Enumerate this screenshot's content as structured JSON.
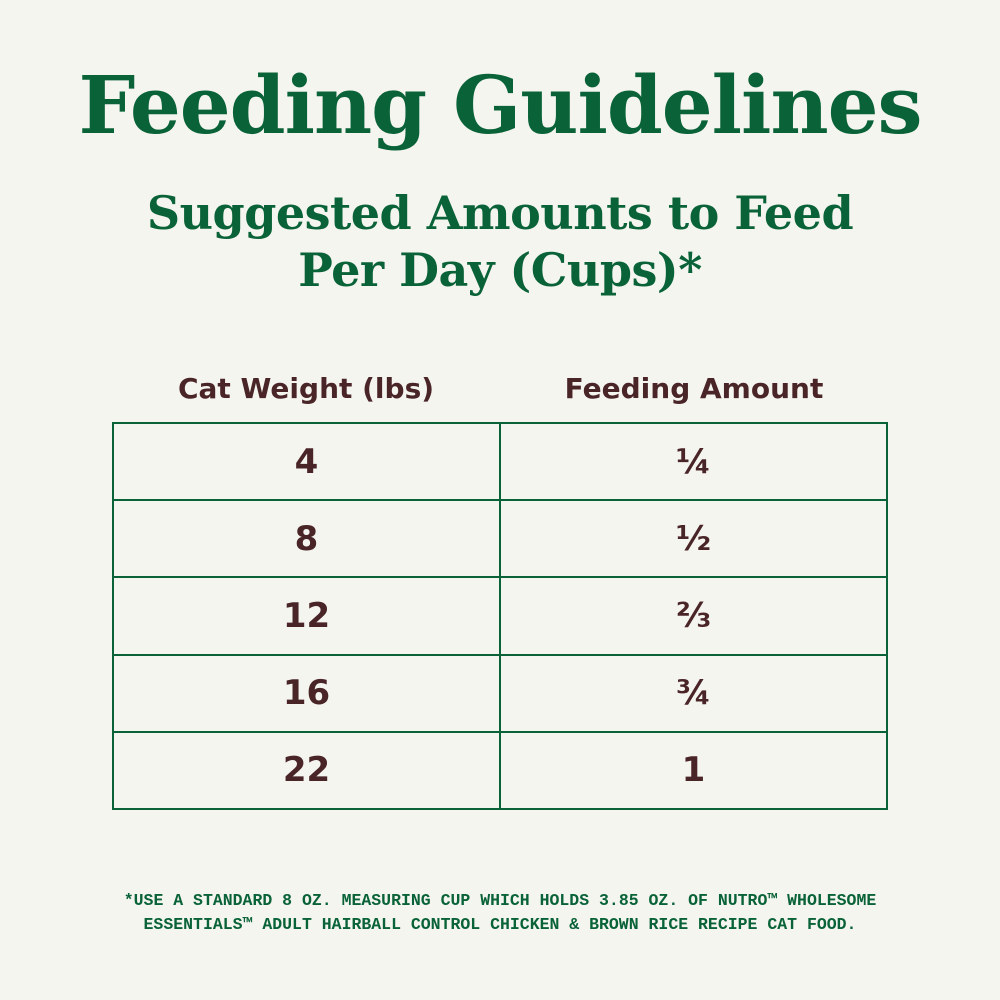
{
  "header": {
    "title": "Feeding Guidelines",
    "subtitle_lines": [
      "Suggested Amounts to Feed",
      "Per Day (Cups)*"
    ]
  },
  "table": {
    "columns": [
      "Cat Weight (lbs)",
      "Feeding Amount"
    ],
    "rows": [
      [
        "4",
        "¼"
      ],
      [
        "8",
        "½"
      ],
      [
        "12",
        "⅔"
      ],
      [
        "16",
        "¾"
      ],
      [
        "22",
        "1"
      ]
    ]
  },
  "footnote_lines": [
    "*USE A STANDARD 8 OZ. MEASURING CUP WHICH HOLDS 3.85 OZ. OF NUTRO™ WHOLESOME",
    "ESSENTIALS™ ADULT HAIRBALL CONTROL CHICKEN & BROWN RICE RECIPE CAT FOOD."
  ]
}
